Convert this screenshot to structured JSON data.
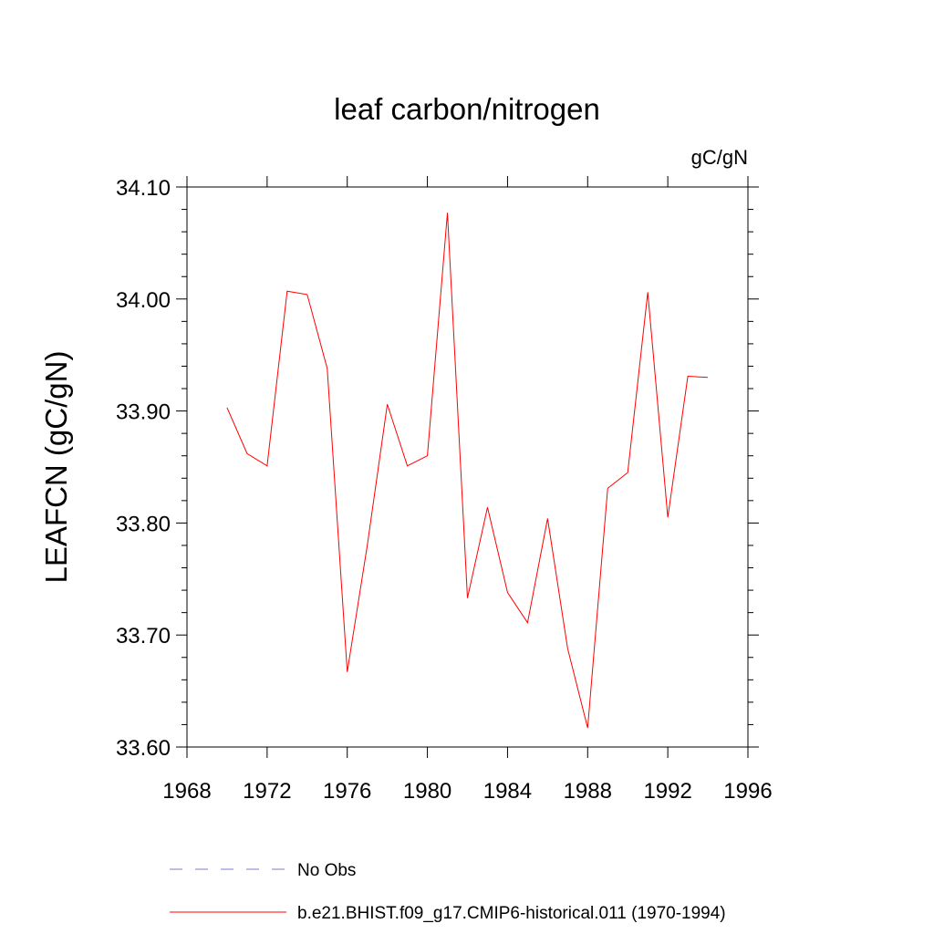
{
  "chart_data": {
    "type": "line",
    "title": "leaf carbon/nitrogen",
    "units_label": "gC/gN",
    "ylabel": "LEAFCN  (gC/gN)",
    "xlabel": "",
    "xlim": [
      1968,
      1996
    ],
    "ylim": [
      33.6,
      34.1
    ],
    "x_ticks": [
      1968,
      1972,
      1976,
      1980,
      1984,
      1988,
      1992,
      1996
    ],
    "x_tick_labels": [
      "1968",
      "1972",
      "1976",
      "1980",
      "1984",
      "1988",
      "1992",
      "1996"
    ],
    "y_ticks": [
      33.6,
      33.7,
      33.8,
      33.9,
      34.0,
      34.1
    ],
    "y_tick_labels": [
      "33.60",
      "33.70",
      "33.80",
      "33.90",
      "34.00",
      "34.10"
    ],
    "grid": false,
    "legend_position": "bottom",
    "series": [
      {
        "name": "No Obs",
        "color": "#7b7bd9",
        "dash": "dashed",
        "x": [],
        "y": []
      },
      {
        "name": "b.e21.BHIST.f09_g17.CMIP6-historical.011 (1970-1994)",
        "color": "#ff0000",
        "dash": "solid",
        "x": [
          1970,
          1971,
          1972,
          1973,
          1974,
          1975,
          1976,
          1977,
          1978,
          1979,
          1980,
          1981,
          1982,
          1983,
          1984,
          1985,
          1986,
          1987,
          1988,
          1989,
          1990,
          1991,
          1992,
          1993,
          1994
        ],
        "y": [
          33.903,
          33.862,
          33.851,
          34.007,
          34.004,
          33.938,
          33.667,
          33.78,
          33.906,
          33.851,
          33.86,
          34.077,
          33.733,
          33.814,
          33.738,
          33.711,
          33.804,
          33.688,
          33.617,
          33.831,
          33.845,
          34.006,
          33.805,
          33.931,
          33.93
        ]
      }
    ]
  }
}
